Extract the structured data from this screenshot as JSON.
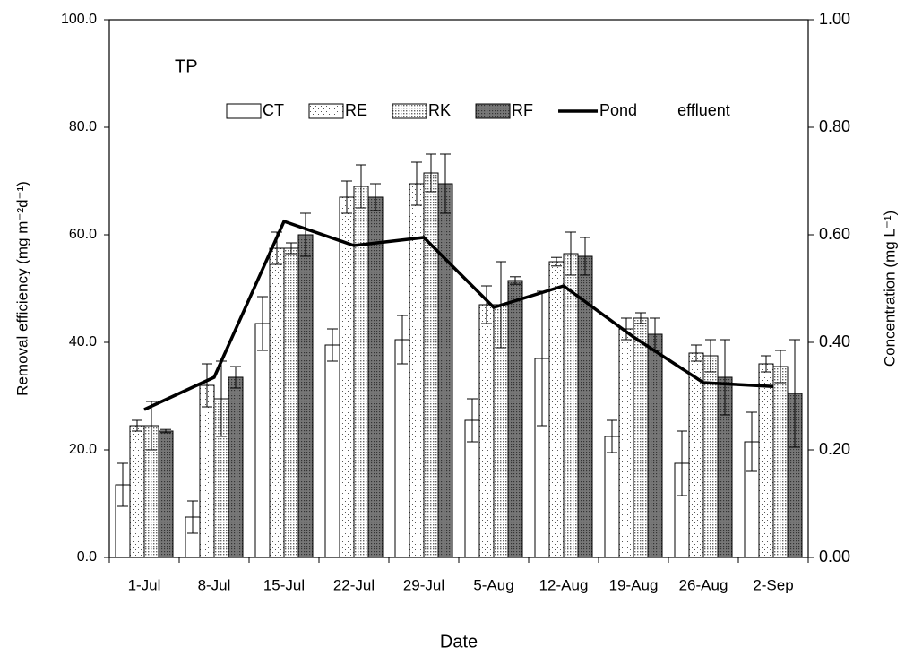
{
  "chart_data": {
    "type": "bar",
    "annotation": "TP",
    "x_label": "Date",
    "y_label": "Removal efficiency (mg m⁻²d⁻¹)",
    "y2_label": "Concentration (mg L⁻¹)",
    "categories": [
      "1-Jul",
      "8-Jul",
      "15-Jul",
      "22-Jul",
      "29-Jul",
      "5-Aug",
      "12-Aug",
      "19-Aug",
      "26-Aug",
      "2-Sep"
    ],
    "series": [
      {
        "name": "CT",
        "type": "bar",
        "color": "#ffffff",
        "pattern": "none",
        "values": [
          13.5,
          7.5,
          43.5,
          39.5,
          40.5,
          25.5,
          37,
          22.5,
          17.5,
          21.5
        ],
        "errors": [
          4,
          3,
          5,
          3,
          4.5,
          4,
          12.5,
          3,
          6,
          5.5
        ]
      },
      {
        "name": "RE",
        "type": "bar",
        "color": "#ffffff",
        "pattern": "sparse-dots",
        "values": [
          24.5,
          32,
          57.5,
          67,
          69.5,
          47,
          55,
          42.5,
          38,
          36
        ],
        "errors": [
          1,
          4,
          3,
          3,
          4,
          3.5,
          0.8,
          2,
          1.5,
          1.5
        ]
      },
      {
        "name": "RK",
        "type": "bar",
        "color": "#d9d9d9",
        "pattern": "dense-dots",
        "values": [
          24.5,
          29.5,
          57.5,
          69,
          71.5,
          47,
          56.5,
          44.5,
          37.5,
          35.5
        ],
        "errors": [
          4.5,
          7,
          1,
          4,
          3.5,
          8,
          4,
          1,
          3,
          3
        ]
      },
      {
        "name": "RF",
        "type": "bar",
        "color": "#808080",
        "pattern": "dark",
        "values": [
          23.5,
          33.5,
          60,
          67,
          69.5,
          51.5,
          56,
          41.5,
          33.5,
          30.5
        ],
        "errors": [
          0.3,
          2,
          4,
          2.5,
          5.5,
          0.7,
          3.5,
          3,
          7,
          10
        ]
      },
      {
        "name": "Pond effluent",
        "type": "line",
        "axis": "y2",
        "color": "#000000",
        "values": [
          0.275,
          0.335,
          0.625,
          0.58,
          0.595,
          0.465,
          0.505,
          0.41,
          0.325,
          0.318
        ]
      }
    ],
    "ylim": [
      0,
      100
    ],
    "yticks": [
      {
        "value": 0,
        "label": "0.0"
      },
      {
        "value": 20,
        "label": "20.0"
      },
      {
        "value": 40,
        "label": "40.0"
      },
      {
        "value": 60,
        "label": "60.0"
      },
      {
        "value": 80,
        "label": "80.0"
      },
      {
        "value": 100,
        "label": "100.0"
      }
    ],
    "y2lim": [
      0,
      1
    ],
    "y2ticks": [
      {
        "value": 0,
        "label": "0.00"
      },
      {
        "value": 0.2,
        "label": "0.20"
      },
      {
        "value": 0.4,
        "label": "0.40"
      },
      {
        "value": 0.6,
        "label": "0.60"
      },
      {
        "value": 0.8,
        "label": "0.80"
      },
      {
        "value": 1,
        "label": "1.00"
      }
    ],
    "grid": false,
    "legend": "top"
  }
}
